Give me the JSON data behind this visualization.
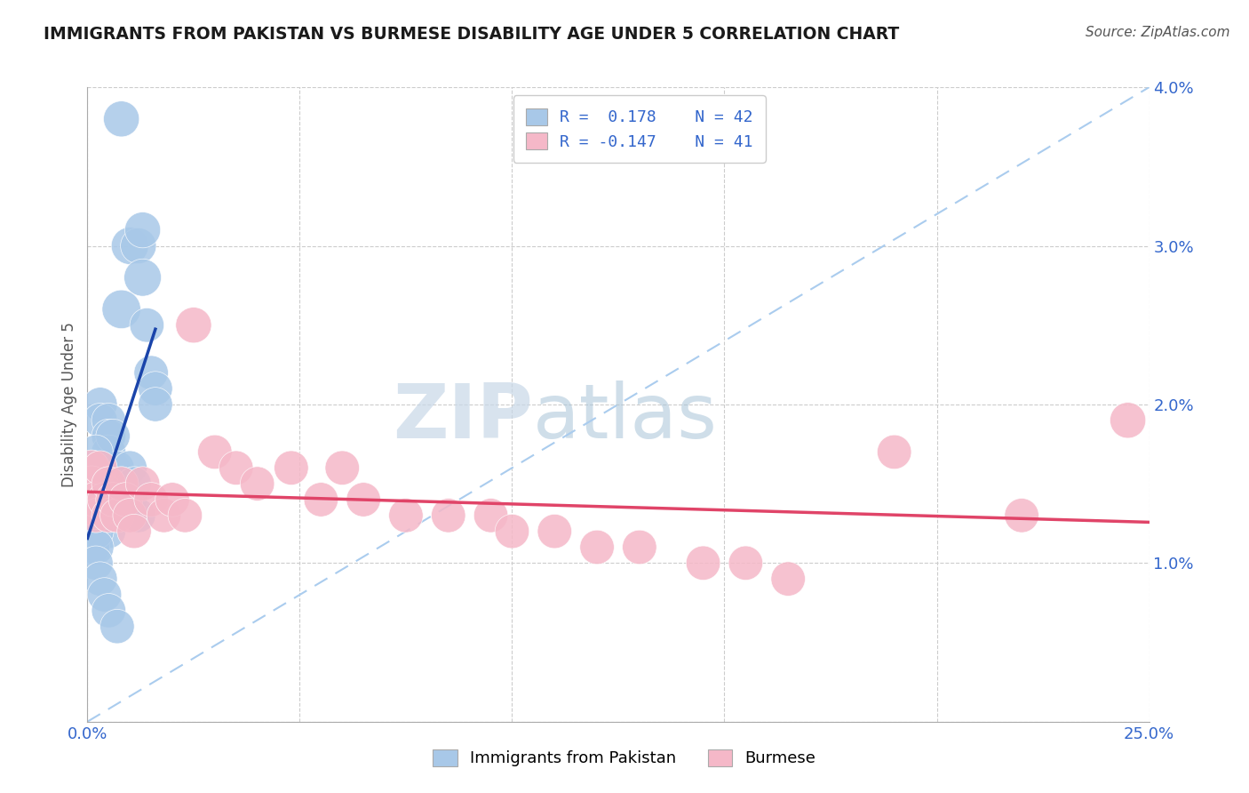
{
  "title": "IMMIGRANTS FROM PAKISTAN VS BURMESE DISABILITY AGE UNDER 5 CORRELATION CHART",
  "source": "Source: ZipAtlas.com",
  "ylabel": "Disability Age Under 5",
  "xlim": [
    0.0,
    0.25
  ],
  "ylim": [
    0.0,
    0.04
  ],
  "xtick_vals": [
    0.0,
    0.05,
    0.1,
    0.15,
    0.2,
    0.25
  ],
  "ytick_vals": [
    0.0,
    0.01,
    0.02,
    0.03,
    0.04
  ],
  "xticklabels": [
    "0.0%",
    "",
    "",
    "",
    "",
    "25.0%"
  ],
  "yticklabels": [
    "",
    "1.0%",
    "2.0%",
    "3.0%",
    "4.0%"
  ],
  "legend_r1": "R =  0.178",
  "legend_n1": "N = 42",
  "legend_r2": "R = -0.147",
  "legend_n2": "N = 41",
  "blue_fill": "#a8c8e8",
  "pink_fill": "#f5b8c8",
  "blue_line": "#1a44aa",
  "pink_line": "#e04468",
  "dash_color": "#aaccee",
  "watermark_zip": "ZIP",
  "watermark_atlas": "atlas",
  "pk_x": [
    0.008,
    0.008,
    0.01,
    0.012,
    0.013,
    0.013,
    0.014,
    0.015,
    0.016,
    0.016,
    0.003,
    0.003,
    0.005,
    0.005,
    0.005,
    0.006,
    0.006,
    0.007,
    0.007,
    0.008,
    0.009,
    0.01,
    0.01,
    0.011,
    0.012,
    0.002,
    0.002,
    0.003,
    0.004,
    0.005,
    0.0,
    0.0,
    0.001,
    0.001,
    0.001,
    0.002,
    0.002,
    0.002,
    0.003,
    0.004,
    0.005,
    0.007
  ],
  "pk_y": [
    0.038,
    0.026,
    0.03,
    0.03,
    0.031,
    0.028,
    0.025,
    0.022,
    0.021,
    0.02,
    0.02,
    0.019,
    0.019,
    0.018,
    0.017,
    0.016,
    0.018,
    0.015,
    0.016,
    0.015,
    0.014,
    0.016,
    0.014,
    0.015,
    0.013,
    0.017,
    0.015,
    0.014,
    0.013,
    0.012,
    0.014,
    0.013,
    0.013,
    0.012,
    0.011,
    0.012,
    0.011,
    0.01,
    0.009,
    0.008,
    0.007,
    0.006
  ],
  "pk_s": [
    60,
    70,
    65,
    60,
    60,
    65,
    55,
    55,
    55,
    55,
    55,
    55,
    55,
    55,
    55,
    55,
    55,
    55,
    55,
    55,
    55,
    55,
    55,
    55,
    55,
    55,
    55,
    55,
    55,
    55,
    130,
    100,
    80,
    70,
    60,
    60,
    60,
    55,
    55,
    55,
    55,
    55
  ],
  "bm_x": [
    0.0,
    0.001,
    0.001,
    0.002,
    0.002,
    0.003,
    0.004,
    0.005,
    0.005,
    0.006,
    0.007,
    0.008,
    0.009,
    0.01,
    0.011,
    0.013,
    0.015,
    0.018,
    0.02,
    0.023,
    0.025,
    0.03,
    0.035,
    0.04,
    0.048,
    0.055,
    0.06,
    0.065,
    0.075,
    0.085,
    0.095,
    0.1,
    0.11,
    0.12,
    0.13,
    0.145,
    0.155,
    0.165,
    0.19,
    0.22,
    0.245
  ],
  "bm_y": [
    0.014,
    0.016,
    0.015,
    0.014,
    0.013,
    0.016,
    0.014,
    0.015,
    0.013,
    0.014,
    0.013,
    0.015,
    0.014,
    0.013,
    0.012,
    0.015,
    0.014,
    0.013,
    0.014,
    0.013,
    0.025,
    0.017,
    0.016,
    0.015,
    0.016,
    0.014,
    0.016,
    0.014,
    0.013,
    0.013,
    0.013,
    0.012,
    0.012,
    0.011,
    0.011,
    0.01,
    0.01,
    0.009,
    0.017,
    0.013,
    0.019
  ],
  "bm_s": [
    120,
    60,
    60,
    60,
    55,
    55,
    55,
    55,
    55,
    55,
    55,
    55,
    55,
    55,
    55,
    55,
    55,
    55,
    55,
    55,
    60,
    55,
    55,
    55,
    55,
    55,
    55,
    55,
    55,
    55,
    55,
    55,
    55,
    55,
    55,
    55,
    55,
    55,
    55,
    55,
    60
  ],
  "pk_line_x0": 0.0,
  "pk_line_x1": 0.016,
  "bm_line_x0": 0.0,
  "bm_line_x1": 0.25
}
